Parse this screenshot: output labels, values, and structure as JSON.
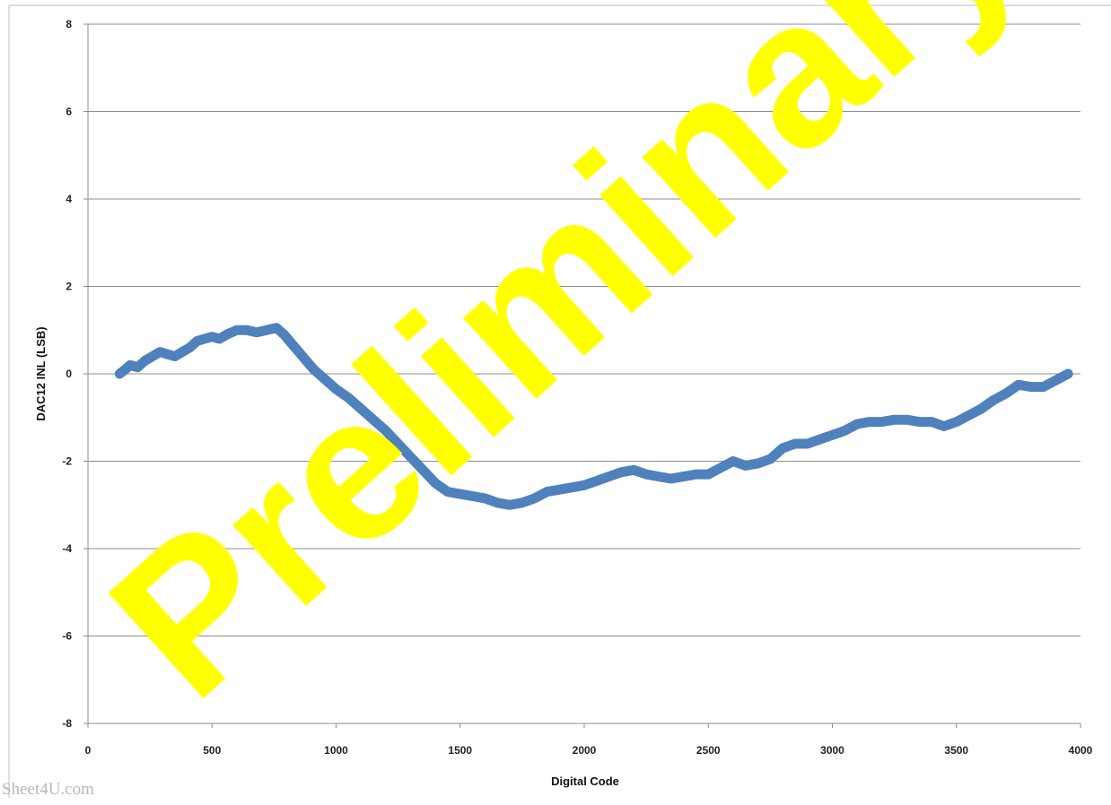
{
  "chart_data": {
    "type": "line",
    "title": "",
    "xlabel": "Digital Code",
    "ylabel": "DAC12 INL (LSB)",
    "xlim": [
      0,
      4000
    ],
    "ylim": [
      -8,
      8
    ],
    "x_ticks": [
      0,
      500,
      1000,
      1500,
      2000,
      2500,
      3000,
      3500,
      4000
    ],
    "y_ticks": [
      -8,
      -6,
      -4,
      -2,
      0,
      2,
      4,
      6,
      8
    ],
    "grid": "horizontal",
    "legend": "none",
    "series": [
      {
        "color": "#4f81bd",
        "x": [
          128,
          150,
          170,
          200,
          230,
          260,
          290,
          320,
          350,
          380,
          410,
          440,
          470,
          500,
          530,
          560,
          600,
          640,
          680,
          720,
          760,
          790,
          820,
          850,
          880,
          910,
          950,
          1000,
          1050,
          1100,
          1150,
          1200,
          1250,
          1300,
          1350,
          1400,
          1450,
          1500,
          1550,
          1600,
          1650,
          1700,
          1750,
          1800,
          1850,
          1900,
          1950,
          2000,
          2050,
          2100,
          2150,
          2200,
          2250,
          2300,
          2350,
          2400,
          2450,
          2500,
          2550,
          2600,
          2650,
          2700,
          2750,
          2800,
          2850,
          2900,
          2950,
          3000,
          3050,
          3100,
          3150,
          3200,
          3250,
          3300,
          3350,
          3400,
          3450,
          3500,
          3550,
          3600,
          3650,
          3700,
          3750,
          3800,
          3850,
          3900,
          3950
        ],
        "y": [
          0.0,
          0.1,
          0.2,
          0.15,
          0.3,
          0.4,
          0.5,
          0.45,
          0.4,
          0.5,
          0.6,
          0.75,
          0.8,
          0.85,
          0.8,
          0.9,
          1.0,
          1.0,
          0.95,
          1.0,
          1.05,
          0.9,
          0.7,
          0.5,
          0.3,
          0.1,
          -0.1,
          -0.35,
          -0.55,
          -0.8,
          -1.05,
          -1.3,
          -1.6,
          -1.9,
          -2.2,
          -2.5,
          -2.7,
          -2.75,
          -2.8,
          -2.85,
          -2.95,
          -3.0,
          -2.95,
          -2.85,
          -2.7,
          -2.65,
          -2.6,
          -2.55,
          -2.45,
          -2.35,
          -2.25,
          -2.2,
          -2.3,
          -2.35,
          -2.4,
          -2.35,
          -2.3,
          -2.3,
          -2.15,
          -2.0,
          -2.1,
          -2.05,
          -1.95,
          -1.7,
          -1.6,
          -1.6,
          -1.5,
          -1.4,
          -1.3,
          -1.15,
          -1.1,
          -1.1,
          -1.05,
          -1.05,
          -1.1,
          -1.1,
          -1.2,
          -1.1,
          -0.95,
          -0.8,
          -0.6,
          -0.45,
          -0.25,
          -0.3,
          -0.3,
          -0.15,
          0.0
        ]
      }
    ]
  },
  "watermark": {
    "text": "Preliminary",
    "color": "#ffff00"
  },
  "site_mark": {
    "text": "Sheet4U.com"
  }
}
